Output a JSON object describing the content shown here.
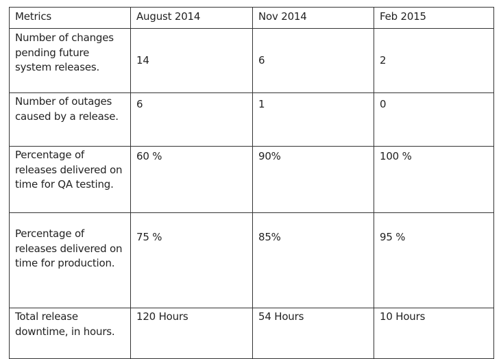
{
  "table": {
    "header": [
      "Metrics",
      "August 2014",
      "Nov 2014",
      "Feb 2015"
    ],
    "rows": [
      [
        "Number of changes pending future system releases.",
        "14",
        "6",
        "2"
      ],
      [
        "Number of outages caused by a release.",
        "6",
        "1",
        "0"
      ],
      [
        "Percentage of releases delivered on time for QA testing.",
        "60 %",
        "90%",
        "100 %"
      ],
      [
        "Percentage of releases delivered on time for production.",
        "75 %",
        "85%",
        "95 %"
      ],
      [
        "Total release downtime, in hours.",
        "120 Hours",
        "54 Hours",
        "10 Hours"
      ]
    ]
  }
}
